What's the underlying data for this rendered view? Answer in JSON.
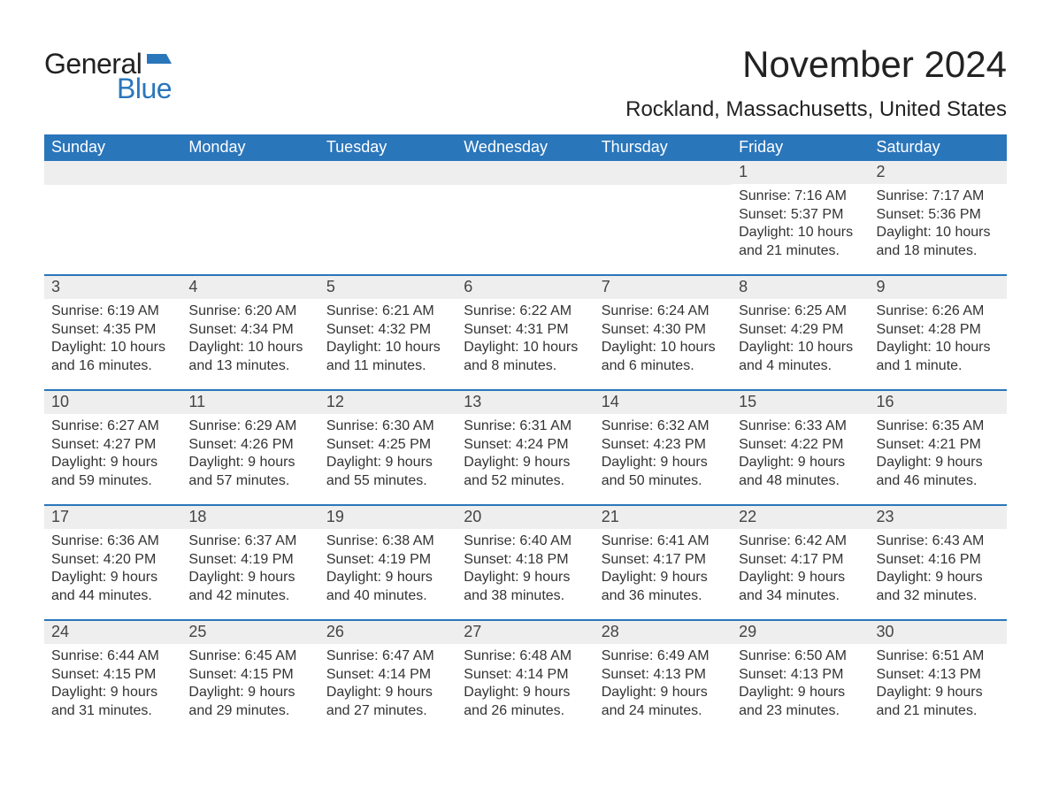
{
  "brand": {
    "general": "General",
    "blue": "Blue",
    "flag_color": "#2a76bb"
  },
  "header": {
    "month_title": "November 2024",
    "location": "Rockland, Massachusetts, United States"
  },
  "calendar": {
    "type": "table",
    "day_headers": [
      "Sunday",
      "Monday",
      "Tuesday",
      "Wednesday",
      "Thursday",
      "Friday",
      "Saturday"
    ],
    "header_bg": "#2a76bb",
    "header_fg": "#ffffff",
    "row_border_color": "#2a76bb",
    "daynum_bg": "#eeeeee",
    "text_color": "#333333",
    "weeks": [
      [
        null,
        null,
        null,
        null,
        null,
        {
          "day": "1",
          "sunrise": "Sunrise: 7:16 AM",
          "sunset": "Sunset: 5:37 PM",
          "dl1": "Daylight: 10 hours",
          "dl2": "and 21 minutes."
        },
        {
          "day": "2",
          "sunrise": "Sunrise: 7:17 AM",
          "sunset": "Sunset: 5:36 PM",
          "dl1": "Daylight: 10 hours",
          "dl2": "and 18 minutes."
        }
      ],
      [
        {
          "day": "3",
          "sunrise": "Sunrise: 6:19 AM",
          "sunset": "Sunset: 4:35 PM",
          "dl1": "Daylight: 10 hours",
          "dl2": "and 16 minutes."
        },
        {
          "day": "4",
          "sunrise": "Sunrise: 6:20 AM",
          "sunset": "Sunset: 4:34 PM",
          "dl1": "Daylight: 10 hours",
          "dl2": "and 13 minutes."
        },
        {
          "day": "5",
          "sunrise": "Sunrise: 6:21 AM",
          "sunset": "Sunset: 4:32 PM",
          "dl1": "Daylight: 10 hours",
          "dl2": "and 11 minutes."
        },
        {
          "day": "6",
          "sunrise": "Sunrise: 6:22 AM",
          "sunset": "Sunset: 4:31 PM",
          "dl1": "Daylight: 10 hours",
          "dl2": "and 8 minutes."
        },
        {
          "day": "7",
          "sunrise": "Sunrise: 6:24 AM",
          "sunset": "Sunset: 4:30 PM",
          "dl1": "Daylight: 10 hours",
          "dl2": "and 6 minutes."
        },
        {
          "day": "8",
          "sunrise": "Sunrise: 6:25 AM",
          "sunset": "Sunset: 4:29 PM",
          "dl1": "Daylight: 10 hours",
          "dl2": "and 4 minutes."
        },
        {
          "day": "9",
          "sunrise": "Sunrise: 6:26 AM",
          "sunset": "Sunset: 4:28 PM",
          "dl1": "Daylight: 10 hours",
          "dl2": "and 1 minute."
        }
      ],
      [
        {
          "day": "10",
          "sunrise": "Sunrise: 6:27 AM",
          "sunset": "Sunset: 4:27 PM",
          "dl1": "Daylight: 9 hours",
          "dl2": "and 59 minutes."
        },
        {
          "day": "11",
          "sunrise": "Sunrise: 6:29 AM",
          "sunset": "Sunset: 4:26 PM",
          "dl1": "Daylight: 9 hours",
          "dl2": "and 57 minutes."
        },
        {
          "day": "12",
          "sunrise": "Sunrise: 6:30 AM",
          "sunset": "Sunset: 4:25 PM",
          "dl1": "Daylight: 9 hours",
          "dl2": "and 55 minutes."
        },
        {
          "day": "13",
          "sunrise": "Sunrise: 6:31 AM",
          "sunset": "Sunset: 4:24 PM",
          "dl1": "Daylight: 9 hours",
          "dl2": "and 52 minutes."
        },
        {
          "day": "14",
          "sunrise": "Sunrise: 6:32 AM",
          "sunset": "Sunset: 4:23 PM",
          "dl1": "Daylight: 9 hours",
          "dl2": "and 50 minutes."
        },
        {
          "day": "15",
          "sunrise": "Sunrise: 6:33 AM",
          "sunset": "Sunset: 4:22 PM",
          "dl1": "Daylight: 9 hours",
          "dl2": "and 48 minutes."
        },
        {
          "day": "16",
          "sunrise": "Sunrise: 6:35 AM",
          "sunset": "Sunset: 4:21 PM",
          "dl1": "Daylight: 9 hours",
          "dl2": "and 46 minutes."
        }
      ],
      [
        {
          "day": "17",
          "sunrise": "Sunrise: 6:36 AM",
          "sunset": "Sunset: 4:20 PM",
          "dl1": "Daylight: 9 hours",
          "dl2": "and 44 minutes."
        },
        {
          "day": "18",
          "sunrise": "Sunrise: 6:37 AM",
          "sunset": "Sunset: 4:19 PM",
          "dl1": "Daylight: 9 hours",
          "dl2": "and 42 minutes."
        },
        {
          "day": "19",
          "sunrise": "Sunrise: 6:38 AM",
          "sunset": "Sunset: 4:19 PM",
          "dl1": "Daylight: 9 hours",
          "dl2": "and 40 minutes."
        },
        {
          "day": "20",
          "sunrise": "Sunrise: 6:40 AM",
          "sunset": "Sunset: 4:18 PM",
          "dl1": "Daylight: 9 hours",
          "dl2": "and 38 minutes."
        },
        {
          "day": "21",
          "sunrise": "Sunrise: 6:41 AM",
          "sunset": "Sunset: 4:17 PM",
          "dl1": "Daylight: 9 hours",
          "dl2": "and 36 minutes."
        },
        {
          "day": "22",
          "sunrise": "Sunrise: 6:42 AM",
          "sunset": "Sunset: 4:17 PM",
          "dl1": "Daylight: 9 hours",
          "dl2": "and 34 minutes."
        },
        {
          "day": "23",
          "sunrise": "Sunrise: 6:43 AM",
          "sunset": "Sunset: 4:16 PM",
          "dl1": "Daylight: 9 hours",
          "dl2": "and 32 minutes."
        }
      ],
      [
        {
          "day": "24",
          "sunrise": "Sunrise: 6:44 AM",
          "sunset": "Sunset: 4:15 PM",
          "dl1": "Daylight: 9 hours",
          "dl2": "and 31 minutes."
        },
        {
          "day": "25",
          "sunrise": "Sunrise: 6:45 AM",
          "sunset": "Sunset: 4:15 PM",
          "dl1": "Daylight: 9 hours",
          "dl2": "and 29 minutes."
        },
        {
          "day": "26",
          "sunrise": "Sunrise: 6:47 AM",
          "sunset": "Sunset: 4:14 PM",
          "dl1": "Daylight: 9 hours",
          "dl2": "and 27 minutes."
        },
        {
          "day": "27",
          "sunrise": "Sunrise: 6:48 AM",
          "sunset": "Sunset: 4:14 PM",
          "dl1": "Daylight: 9 hours",
          "dl2": "and 26 minutes."
        },
        {
          "day": "28",
          "sunrise": "Sunrise: 6:49 AM",
          "sunset": "Sunset: 4:13 PM",
          "dl1": "Daylight: 9 hours",
          "dl2": "and 24 minutes."
        },
        {
          "day": "29",
          "sunrise": "Sunrise: 6:50 AM",
          "sunset": "Sunset: 4:13 PM",
          "dl1": "Daylight: 9 hours",
          "dl2": "and 23 minutes."
        },
        {
          "day": "30",
          "sunrise": "Sunrise: 6:51 AM",
          "sunset": "Sunset: 4:13 PM",
          "dl1": "Daylight: 9 hours",
          "dl2": "and 21 minutes."
        }
      ]
    ]
  }
}
